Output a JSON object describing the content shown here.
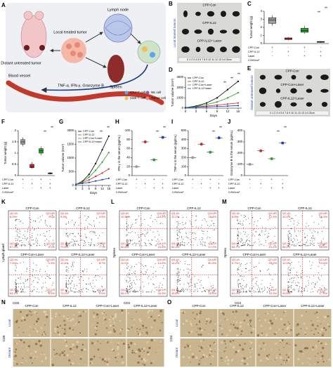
{
  "panel_labels": [
    "A",
    "B",
    "C",
    "D",
    "E",
    "F",
    "G",
    "H",
    "I",
    "J",
    "K",
    "L",
    "M",
    "N",
    "O"
  ],
  "diagram": {
    "lymph_node": "Lymph node",
    "local": "Local treated tumor",
    "distant": "Distant untreated tumor",
    "spleen": "Spleen",
    "vessel": "Blood vessel",
    "cytokines": "TNF-α, IFN-γ, Granzyme B",
    "legend": [
      "CD4⁺T cell",
      "CD8⁺T cell",
      "NK cell",
      "Tumor cell"
    ]
  },
  "photos": [
    {
      "groups": [
        "CPP-Con",
        "CPP-IL12",
        "CPP-IL12+ Laser"
      ],
      "side": "Local treated tumors",
      "ruler": "0 1 2 3 4 5 6 7 8 9 10 11 12 13 14 15cm"
    },
    {
      "groups": [
        "CPP-Con",
        "CPP-Con+Laser",
        "CPP-IL12+Laser"
      ],
      "side": "Distant untreated tumors",
      "ruler": "0 1 2 3 4 5 6 7 8 9 10 11 12 13 14 15cm"
    }
  ],
  "chart_data": [
    {
      "type": "box",
      "ylabel": "Tumor weight (g)",
      "ylim": [
        0,
        4
      ],
      "yticks": [
        0,
        1,
        2,
        3,
        4
      ],
      "boxes": [
        {
          "color": "#9e9e9e",
          "values": [
            2.2,
            2.5,
            2.9,
            3.2,
            3.5
          ]
        },
        {
          "color": "#d62728",
          "values": [
            0.4,
            0.5,
            0.6,
            0.7,
            0.8
          ]
        },
        {
          "color": "#2ca02c",
          "values": [
            1.2,
            1.4,
            1.6,
            1.9,
            2.2
          ]
        },
        {
          "color": "#1f3fbf",
          "values": [
            0.1,
            0.15,
            0.2,
            0.25,
            0.3
          ]
        }
      ],
      "sig": [
        "**",
        "**"
      ],
      "conditions": {
        "rows": [
          "CPP-Con",
          "CPP-IL12",
          "Laser"
        ],
        "signs": [
          [
            "+",
            "-",
            "+",
            "-"
          ],
          [
            "-",
            "+",
            "-",
            "+"
          ],
          [
            "-",
            "-",
            "+",
            "+"
          ]
        ],
        "laser_power": "2.0W/cm²"
      }
    },
    {
      "type": "line",
      "ylabel": "Tumor volume (mm³)",
      "xlabel": "Days",
      "x": [
        0,
        3,
        6,
        9,
        12,
        15
      ],
      "xlim": [
        0,
        16
      ],
      "xticks": [
        0,
        3,
        6,
        9,
        12,
        15
      ],
      "ylim": [
        0,
        3000
      ],
      "yticks": [
        0,
        1000,
        2000,
        3000
      ],
      "series": [
        {
          "name": "CPP-Con",
          "color": "#000000",
          "values": [
            50,
            200,
            500,
            1000,
            1800,
            2600
          ]
        },
        {
          "name": "CPP-IL12",
          "color": "#d62728",
          "values": [
            50,
            100,
            200,
            300,
            400,
            500
          ]
        },
        {
          "name": "CPP-Con+Laser",
          "color": "#2ca02c",
          "values": [
            50,
            150,
            350,
            600,
            1000,
            1500
          ]
        },
        {
          "name": "CPP-IL12+laser",
          "color": "#1f3fbf",
          "values": [
            50,
            80,
            120,
            160,
            200,
            250
          ]
        }
      ],
      "sig": [
        "**",
        "**",
        "**"
      ]
    },
    {
      "type": "box",
      "ylabel": "Tumor weight (g)",
      "ylim": [
        0,
        2
      ],
      "yticks": [
        0,
        0.5,
        1,
        1.5,
        2
      ],
      "boxes": [
        {
          "color": "#9e9e9e",
          "values": [
            1.3,
            1.4,
            1.5,
            1.6,
            1.7
          ]
        },
        {
          "color": "#d62728",
          "values": [
            0.3,
            0.35,
            0.4,
            0.5,
            0.6
          ]
        },
        {
          "color": "#2ca02c",
          "values": [
            0.9,
            1.0,
            1.1,
            1.2,
            1.3
          ]
        },
        {
          "color": "#1f3fbf",
          "values": [
            0.05,
            0.08,
            0.1,
            0.12,
            0.15
          ]
        }
      ],
      "sig": [
        "**",
        "**"
      ],
      "conditions": {
        "rows": [
          "CPP-Con",
          "CPP-IL12",
          "Laser"
        ],
        "signs": [
          [
            "+",
            "-",
            "+",
            "-"
          ],
          [
            "-",
            "+",
            "-",
            "+"
          ],
          [
            "-",
            "-",
            "+",
            "+"
          ]
        ],
        "laser_power": "2.0W/cm²"
      }
    },
    {
      "type": "line",
      "ylabel": "Tumor volume (mm³)",
      "xlabel": "Days",
      "x": [
        0,
        3,
        6,
        9,
        12,
        15
      ],
      "xlim": [
        0,
        16
      ],
      "xticks": [
        0,
        3,
        6,
        9,
        12,
        15
      ],
      "ylim": [
        0,
        2000
      ],
      "yticks": [
        0,
        500,
        1000,
        1500,
        2000
      ],
      "series": [
        {
          "name": "CPP-Con",
          "color": "#000000",
          "values": [
            40,
            150,
            400,
            800,
            1300,
            1800
          ]
        },
        {
          "name": "CPP-IL12",
          "color": "#d62728",
          "values": [
            40,
            100,
            200,
            330,
            450,
            600
          ]
        },
        {
          "name": "CPP-Con+Laser",
          "color": "#2ca02c",
          "values": [
            40,
            130,
            300,
            550,
            850,
            1200
          ]
        },
        {
          "name": "CPP-IL12+laser",
          "color": "#1f3fbf",
          "values": [
            40,
            70,
            110,
            160,
            210,
            260
          ]
        }
      ],
      "sig": [
        "**",
        "**"
      ]
    },
    {
      "type": "dot",
      "ylabel": "IFN-γ in the serum (pg/mL)",
      "ylim": [
        0,
        100
      ],
      "yticks": [
        0,
        20,
        40,
        60,
        80,
        100
      ],
      "colors": [
        "#9e9e9e",
        "#d62728",
        "#2ca02c",
        "#1f3fbf"
      ],
      "values": [
        20,
        75,
        35,
        85
      ],
      "sig": [
        "**",
        "**"
      ],
      "conditions": {
        "rows": [
          "CPP-Con",
          "CPP-IL12",
          "Laser"
        ],
        "signs": [
          [
            "+",
            "-",
            "+",
            "-"
          ],
          [
            "-",
            "+",
            "-",
            "+"
          ],
          [
            "-",
            "-",
            "+",
            "+"
          ]
        ],
        "laser_power": "2.0W/cm²"
      }
    },
    {
      "type": "dot",
      "ylabel": "TNF-α in the serum (pg/mL)",
      "ylim": [
        0,
        500
      ],
      "yticks": [
        0,
        100,
        200,
        300,
        400,
        500
      ],
      "colors": [
        "#9e9e9e",
        "#d62728",
        "#2ca02c",
        "#1f3fbf"
      ],
      "values": [
        200,
        350,
        260,
        420
      ],
      "sig": [
        "**",
        "**"
      ],
      "conditions": {
        "rows": [
          "CPP-Con",
          "CPP-IL12",
          "Laser"
        ],
        "signs": [
          [
            "+",
            "-",
            "+",
            "-"
          ],
          [
            "-",
            "+",
            "-",
            "+"
          ],
          [
            "-",
            "-",
            "+",
            "+"
          ]
        ],
        "laser_power": "2.0W/cm²"
      }
    },
    {
      "type": "dot",
      "ylabel": "Granzyme B in the serum (pg/mL)",
      "ylim": [
        0,
        400
      ],
      "yticks": [
        0,
        100,
        200,
        300,
        400
      ],
      "colors": [
        "#9e9e9e",
        "#d62728",
        "#2ca02c",
        "#1f3fbf"
      ],
      "values": [
        100,
        220,
        150,
        290
      ],
      "sig": [
        "**",
        "**"
      ],
      "conditions": {
        "rows": [
          "CPP-Con",
          "CPP-IL12",
          "Laser"
        ],
        "signs": [
          [
            "+",
            "-",
            "+",
            "-"
          ],
          [
            "-",
            "+",
            "-",
            "+"
          ],
          [
            "-",
            "-",
            "+",
            "+"
          ]
        ],
        "laser_power": "2.0W/cm²"
      }
    }
  ],
  "flow": [
    {
      "ylabel": "Lymph gland",
      "xlabel": "CD8",
      "plots": [
        {
          "title": "CPP-Con",
          "quadrants": [
            [
              "Q2-UL",
              "6.2%"
            ],
            [
              "Q2-UR",
              "1.2%"
            ],
            [
              "Q2-LL",
              "87.5%"
            ],
            [
              "Q2-LR",
              "5.1%"
            ]
          ]
        },
        {
          "title": "CPP-IL12",
          "quadrants": [
            [
              "Q2-UL",
              "9.3%"
            ],
            [
              "Q2-UR",
              "3.4%"
            ],
            [
              "Q2-LL",
              "79.6%"
            ],
            [
              "Q2-LR",
              "7.7%"
            ]
          ]
        },
        {
          "title": "CPP-Con+Laser",
          "quadrants": [
            [
              "Q2-UL",
              "7.5%"
            ],
            [
              "Q2-UR",
              "1.9%"
            ],
            [
              "Q2-LL",
              "84.1%"
            ],
            [
              "Q2-LR",
              "6.5%"
            ]
          ]
        },
        {
          "title": "CPP-IL12+Laser",
          "quadrants": [
            [
              "Q2-UL",
              "12.6%"
            ],
            [
              "Q2-UR",
              "4.7%"
            ],
            [
              "Q2-LL",
              "73.2%"
            ],
            [
              "Q2-LR",
              "9.5%"
            ]
          ]
        }
      ]
    },
    {
      "ylabel": "Spleen",
      "xlabel": "CD3",
      "plots": [
        {
          "title": "CPP-Con",
          "quadrants": [
            [
              "Q4-UL",
              "10.5%"
            ],
            [
              "Q4-UR",
              "13.2%"
            ],
            [
              "Q4-LL",
              "60.8%"
            ],
            [
              "Q4-LR",
              "15.5%"
            ]
          ]
        },
        {
          "title": "CPP-IL12",
          "quadrants": [
            [
              "Q4-UL",
              "12.1%"
            ],
            [
              "Q4-UR",
              "18.4%"
            ],
            [
              "Q4-LL",
              "52.3%"
            ],
            [
              "Q4-LR",
              "17.2%"
            ]
          ]
        },
        {
          "title": "CPP-Con+Laser",
          "quadrants": [
            [
              "Q4-UL",
              "11.0%"
            ],
            [
              "Q4-UR",
              "14.6%"
            ],
            [
              "Q4-LL",
              "58.1%"
            ],
            [
              "Q4-LR",
              "16.3%"
            ]
          ]
        },
        {
          "title": "CPP-IL12+Laser",
          "quadrants": [
            [
              "Q4-UL",
              "14.2%"
            ],
            [
              "Q4-UR",
              "21.5%"
            ],
            [
              "Q4-LL",
              "45.8%"
            ],
            [
              "Q4-LR",
              "18.5%"
            ]
          ]
        }
      ]
    },
    {
      "ylabel": "Spleen",
      "xlabel": "CD3",
      "plots": [
        {
          "title": "CPP-Con",
          "quadrants": [
            [
              "Q2-UL",
              "8.8%"
            ],
            [
              "Q2-UR",
              "12.3%"
            ],
            [
              "Q2-LL",
              "64.7%"
            ],
            [
              "Q2-LR",
              "14.2%"
            ]
          ]
        },
        {
          "title": "CPP-IL12",
          "quadrants": [
            [
              "Q2-UL",
              "10.4%"
            ],
            [
              "Q2-UR",
              "16.9%"
            ],
            [
              "Q2-LL",
              "56.2%"
            ],
            [
              "Q2-LR",
              "16.5%"
            ]
          ]
        },
        {
          "title": "CPP-Con+Laser",
          "quadrants": [
            [
              "Q2-UL",
              "9.7%"
            ],
            [
              "Q2-UR",
              "14.0%"
            ],
            [
              "Q2-LL",
              "61.0%"
            ],
            [
              "Q2-LR",
              "15.3%"
            ]
          ]
        },
        {
          "title": "CPP-IL12+Laser",
          "quadrants": [
            [
              "Q2-UL",
              "13.1%"
            ],
            [
              "Q2-UR",
              "19.8%"
            ],
            [
              "Q2-LL",
              "49.6%"
            ],
            [
              "Q2-LR",
              "17.5%"
            ]
          ]
        }
      ]
    }
  ],
  "ihc": [
    {
      "columns": [
        "CPP-Con",
        "CPP-IL12",
        "CPP-Con+Laser",
        "CPP-IL12+Laser"
      ],
      "rows": [
        "Local",
        "Distant"
      ],
      "marker": "CD8"
    },
    {
      "columns": [
        "CPP-Con",
        "CPP-IL12",
        "CPP-Con+Laser",
        "CPP-IL12+Laser"
      ],
      "rows": [
        "Local",
        "Distant"
      ],
      "marker": "CD4"
    }
  ]
}
